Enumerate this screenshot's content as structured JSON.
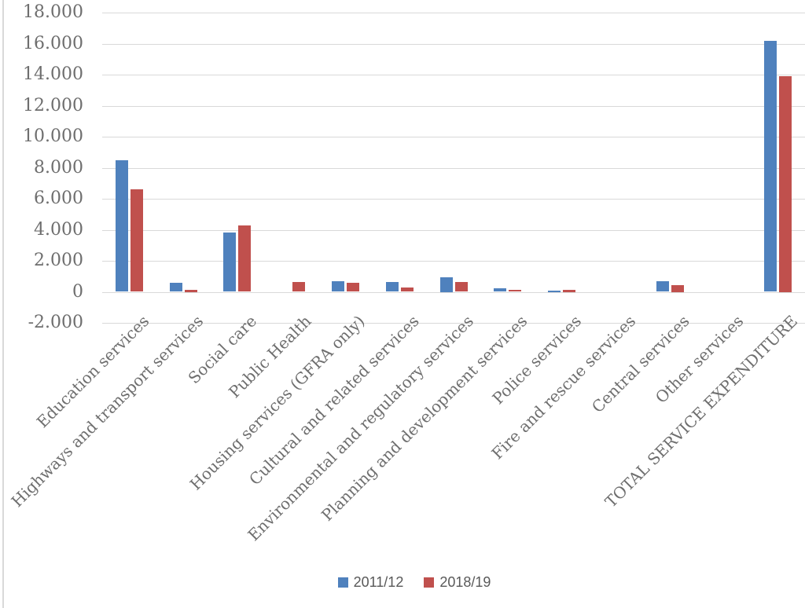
{
  "chart_data": {
    "type": "bar",
    "title": "",
    "categories": [
      "Education services",
      "Highways and transport services",
      "Social care",
      "Public Health",
      "Housing services (GFRA only)",
      "Cultural and related services",
      "Environmental and regulatory services",
      "Planning and development services",
      "Police services",
      "Fire and rescue services",
      "Central services",
      "Other services",
      "TOTAL SERVICE EXPENDITURE"
    ],
    "series": [
      {
        "name": "2011/12",
        "color": "#4F81BD",
        "values": [
          8500,
          600,
          3800,
          0,
          680,
          630,
          960,
          250,
          100,
          0,
          680,
          0,
          16200
        ]
      },
      {
        "name": "2018/19",
        "color": "#C0504D",
        "values": [
          6600,
          150,
          4270,
          630,
          560,
          290,
          630,
          120,
          150,
          0,
          430,
          0,
          13900
        ]
      }
    ],
    "y_axis": {
      "min": -2000,
      "max": 18000,
      "step": 2000,
      "tick_labels": [
        "18.000",
        "16.000",
        "14.000",
        "12.000",
        "10.000",
        "8.000",
        "6.000",
        "4.000",
        "2.000",
        "0",
        "-2.000"
      ]
    },
    "grid": true,
    "legend_position": "bottom",
    "colors": {
      "gridline": "#D9D9D9",
      "axis_text": "#6E6E6E",
      "legend_text": "#595959",
      "chart_border": "#D9D9D9"
    }
  }
}
